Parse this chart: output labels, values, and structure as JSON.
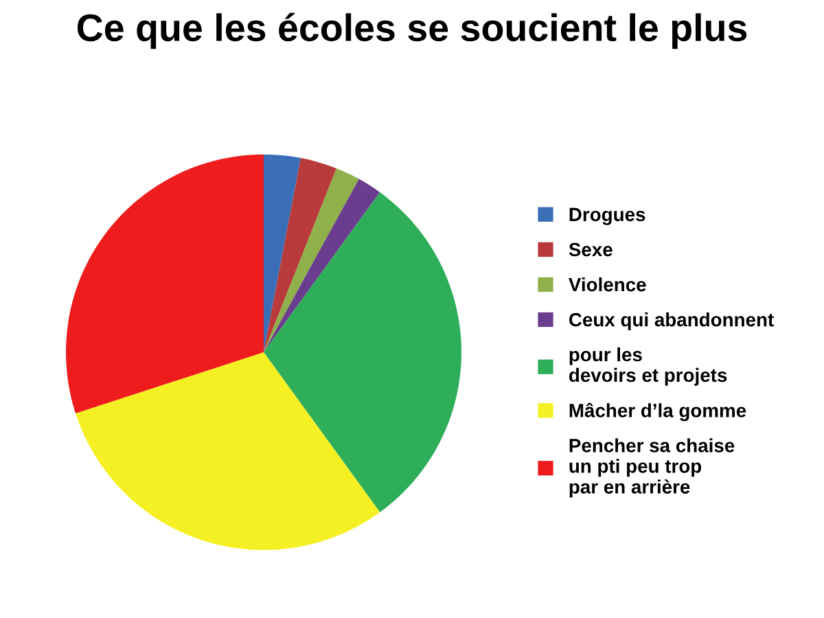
{
  "chart_data": {
    "type": "pie",
    "title": "Ce que les écoles se soucient le plus",
    "categories": [
      "Drogues",
      "Sexe",
      "Violence",
      "Ceux qui abandonnent",
      "pour les\ndevoirs et projets",
      "Mâcher d’la gomme",
      "Pencher sa chaise\nun pti peu trop\npar en arrière"
    ],
    "values": [
      3,
      3,
      2,
      2,
      30,
      30,
      30
    ],
    "colors": [
      "#3a6fb8",
      "#b83a3a",
      "#8fb04a",
      "#6a3d8f",
      "#2fae5a",
      "#f5f023",
      "#ee1c1c"
    ],
    "legend": "right"
  }
}
